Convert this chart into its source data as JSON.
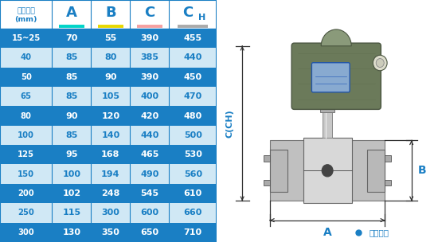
{
  "col_headers_line1": [
    "仪表口径",
    "A",
    "B",
    "C",
    "CH"
  ],
  "col_headers_line2": [
    "(mm)",
    "",
    "",
    "",
    ""
  ],
  "underline_colors": [
    "none",
    "#00d4c8",
    "#e8d800",
    "#f5a0a0",
    "#aaaaaa"
  ],
  "rows": [
    [
      "15~25",
      "70",
      "55",
      "390",
      "455"
    ],
    [
      "40",
      "85",
      "80",
      "385",
      "440"
    ],
    [
      "50",
      "85",
      "90",
      "390",
      "450"
    ],
    [
      "65",
      "85",
      "105",
      "400",
      "470"
    ],
    [
      "80",
      "90",
      "120",
      "420",
      "480"
    ],
    [
      "100",
      "85",
      "140",
      "440",
      "500"
    ],
    [
      "125",
      "95",
      "168",
      "465",
      "530"
    ],
    [
      "150",
      "100",
      "194",
      "490",
      "560"
    ],
    [
      "200",
      "102",
      "248",
      "545",
      "610"
    ],
    [
      "250",
      "115",
      "300",
      "600",
      "660"
    ],
    [
      "300",
      "130",
      "350",
      "650",
      "710"
    ]
  ],
  "row_bg_dark": "#1a7fc4",
  "row_bg_light": "#d0e8f5",
  "text_white": "#ffffff",
  "text_blue": "#1a7fc4",
  "header_bg": "#ffffff",
  "border_color": "#1a7fc4",
  "note_text": "常规仪表",
  "note_color": "#1a7fc4",
  "arr_color": "#333333",
  "dim_label_color": "#1a7fc4"
}
